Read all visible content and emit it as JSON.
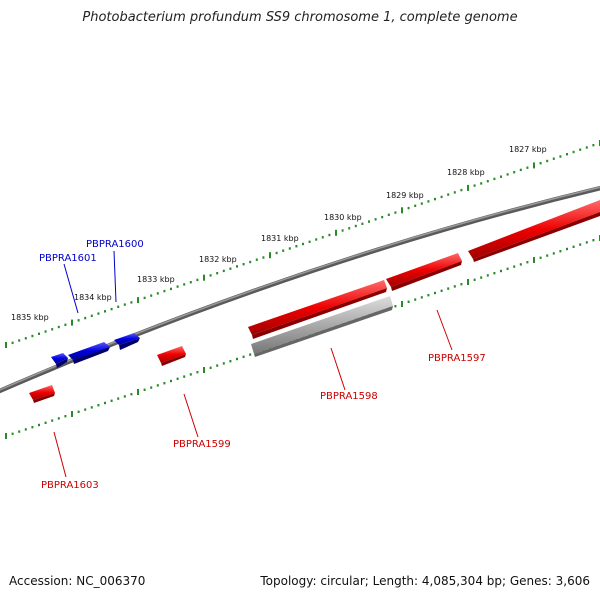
{
  "title": "Photobacterium profundum SS9 chromosome 1, complete genome",
  "footer": {
    "accession": "Accession: NC_006370",
    "summary": "Topology: circular; Length: 4,085,304 bp; Genes: 3,606"
  },
  "colors": {
    "backbone": "#7a7a7a",
    "scale": "#2a8a2a",
    "forward_gene": "#0000dd",
    "forward_label": "#0000cc",
    "reverse_gene": "#ee0000",
    "reverse_label": "#cc0000",
    "pseudogene": "#aaaaaa"
  },
  "scale": {
    "unit": "kbp",
    "ticks": [
      {
        "label": "1827 kbp",
        "kbp": 1827
      },
      {
        "label": "1828 kbp",
        "kbp": 1828
      },
      {
        "label": "1829 kbp",
        "kbp": 1829
      },
      {
        "label": "1830 kbp",
        "kbp": 1830
      },
      {
        "label": "1831 kbp",
        "kbp": 1831
      },
      {
        "label": "1832 kbp",
        "kbp": 1832
      },
      {
        "label": "1833 kbp",
        "kbp": 1833
      },
      {
        "label": "1834 kbp",
        "kbp": 1834
      },
      {
        "label": "1835 kbp",
        "kbp": 1835
      }
    ]
  },
  "genes": [
    {
      "name": "PBPRA1600",
      "strand": "+",
      "labeled": true
    },
    {
      "name": "PBPRA1601",
      "strand": "+",
      "labeled": true
    },
    {
      "name": "",
      "strand": "+",
      "labeled": false
    },
    {
      "name": "PBPRA1597",
      "strand": "-",
      "labeled": true
    },
    {
      "name": "PBPRA1598",
      "strand": "-",
      "labeled": true
    },
    {
      "name": "PBPRA1599",
      "strand": "-",
      "labeled": true
    },
    {
      "name": "PBPRA1603",
      "strand": "-",
      "labeled": true
    },
    {
      "name": "",
      "strand": "-",
      "labeled": false
    },
    {
      "name": "",
      "strand": "-",
      "labeled": false
    },
    {
      "name": "",
      "strand": "-",
      "labeled": false
    }
  ]
}
